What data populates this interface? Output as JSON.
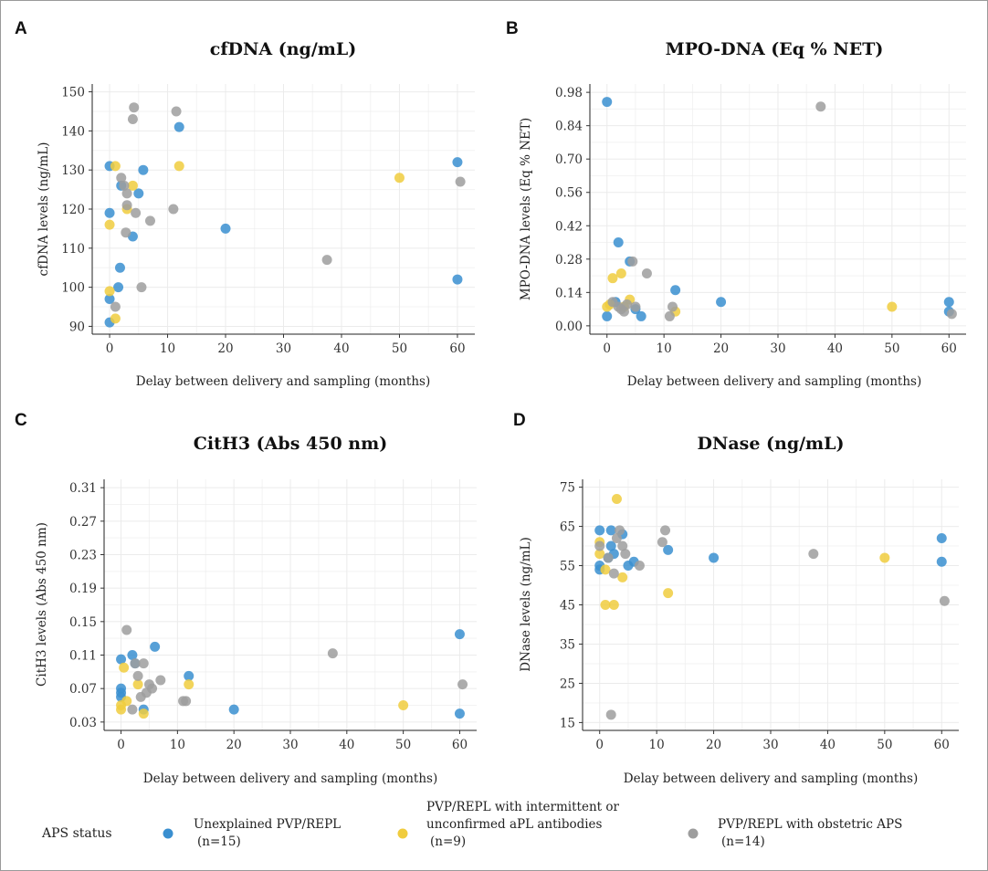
{
  "chart_data": [
    {
      "panel": "A",
      "type": "scatter",
      "title": "cfDNA (ng/mL)",
      "xlabel": "Delay between delivery and sampling (months)",
      "ylabel": "cfDNA levels (ng/mL)",
      "xlim": [
        -3,
        63
      ],
      "ylim": [
        88,
        152
      ],
      "xticks": [
        0,
        10,
        20,
        30,
        40,
        50,
        60
      ],
      "yticks": [
        90,
        100,
        110,
        120,
        130,
        140,
        150
      ],
      "ytick_labels": [
        "90",
        "100",
        "110",
        "120",
        "130",
        "140",
        "150"
      ],
      "series": [
        {
          "group": "unexplained",
          "points": [
            [
              0,
              131
            ],
            [
              0,
              119
            ],
            [
              0,
              97
            ],
            [
              0,
              91
            ],
            [
              1.5,
              100
            ],
            [
              1.8,
              105
            ],
            [
              2,
              126
            ],
            [
              4,
              113
            ],
            [
              5,
              124
            ],
            [
              5.8,
              130
            ],
            [
              12,
              141
            ],
            [
              20,
              115
            ],
            [
              60,
              132
            ],
            [
              60,
              102
            ]
          ]
        },
        {
          "group": "intermittent",
          "points": [
            [
              0,
              116
            ],
            [
              0,
              99
            ],
            [
              1,
              131
            ],
            [
              1,
              92
            ],
            [
              3,
              120
            ],
            [
              4,
              126
            ],
            [
              12,
              131
            ],
            [
              50,
              128
            ]
          ]
        },
        {
          "group": "obstetric",
          "points": [
            [
              1,
              95
            ],
            [
              2,
              128
            ],
            [
              2.5,
              126
            ],
            [
              3,
              124
            ],
            [
              2.8,
              114
            ],
            [
              3,
              121
            ],
            [
              4,
              143
            ],
            [
              4.2,
              146
            ],
            [
              4.5,
              119
            ],
            [
              5.5,
              100
            ],
            [
              7,
              117
            ],
            [
              11,
              120
            ],
            [
              11.5,
              145
            ],
            [
              37.5,
              107
            ],
            [
              60.5,
              127
            ]
          ]
        }
      ]
    },
    {
      "panel": "B",
      "type": "scatter",
      "title": "MPO-DNA (Eq % NET)",
      "xlabel": "Delay between delivery and sampling (months)",
      "ylabel": "MPO-DNA levels (Eq % NET)",
      "xlim": [
        -3,
        63
      ],
      "ylim": [
        -0.035,
        1.015
      ],
      "xticks": [
        0,
        10,
        20,
        30,
        40,
        50,
        60
      ],
      "yticks": [
        0.0,
        0.14,
        0.28,
        0.42,
        0.56,
        0.7,
        0.84,
        0.98
      ],
      "ytick_labels": [
        "0.00",
        "0.14",
        "0.28",
        "0.42",
        "0.56",
        "0.70",
        "0.84",
        "0.98"
      ],
      "series": [
        {
          "group": "unexplained",
          "points": [
            [
              0,
              0.94
            ],
            [
              0,
              0.04
            ],
            [
              1.5,
              0.1
            ],
            [
              2,
              0.35
            ],
            [
              4,
              0.27
            ],
            [
              5,
              0.07
            ],
            [
              6,
              0.04
            ],
            [
              12,
              0.15
            ],
            [
              20,
              0.1
            ],
            [
              60,
              0.1
            ],
            [
              60,
              0.06
            ]
          ]
        },
        {
          "group": "intermittent",
          "points": [
            [
              0,
              0.08
            ],
            [
              0.5,
              0.09
            ],
            [
              1,
              0.2
            ],
            [
              2.5,
              0.22
            ],
            [
              3,
              0.08
            ],
            [
              4,
              0.11
            ],
            [
              12,
              0.06
            ],
            [
              50,
              0.08
            ]
          ]
        },
        {
          "group": "obstetric",
          "points": [
            [
              1,
              0.1
            ],
            [
              2,
              0.08
            ],
            [
              2.5,
              0.07
            ],
            [
              3,
              0.06
            ],
            [
              3.5,
              0.09
            ],
            [
              4.5,
              0.27
            ],
            [
              5,
              0.08
            ],
            [
              7,
              0.22
            ],
            [
              11,
              0.04
            ],
            [
              11.5,
              0.08
            ],
            [
              37.5,
              0.92
            ],
            [
              60.5,
              0.05
            ]
          ]
        }
      ]
    },
    {
      "panel": "C",
      "type": "scatter",
      "title": "CitH3 (Abs 450 nm)",
      "xlabel": "Delay between delivery and sampling (months)",
      "ylabel": "CitH3 levels (Abs 450 nm)",
      "xlim": [
        -3,
        63
      ],
      "ylim": [
        0.02,
        0.32
      ],
      "xticks": [
        0,
        10,
        20,
        30,
        40,
        50,
        60
      ],
      "yticks": [
        0.03,
        0.07,
        0.11,
        0.15,
        0.19,
        0.23,
        0.27,
        0.31
      ],
      "ytick_labels": [
        "0.03",
        "0.07",
        "0.11",
        "0.15",
        "0.19",
        "0.23",
        "0.27",
        "0.31"
      ],
      "series": [
        {
          "group": "unexplained",
          "points": [
            [
              0,
              0.105
            ],
            [
              0,
              0.07
            ],
            [
              0,
              0.065
            ],
            [
              0,
              0.06
            ],
            [
              2,
              0.11
            ],
            [
              2.5,
              0.1
            ],
            [
              4,
              0.045
            ],
            [
              6,
              0.12
            ],
            [
              12,
              0.085
            ],
            [
              20,
              0.045
            ],
            [
              60,
              0.135
            ],
            [
              60,
              0.04
            ]
          ]
        },
        {
          "group": "intermittent",
          "points": [
            [
              0,
              0.05
            ],
            [
              0,
              0.045
            ],
            [
              0.5,
              0.095
            ],
            [
              1,
              0.055
            ],
            [
              3,
              0.075
            ],
            [
              4,
              0.04
            ],
            [
              12,
              0.075
            ],
            [
              50,
              0.05
            ]
          ]
        },
        {
          "group": "obstetric",
          "points": [
            [
              1,
              0.14
            ],
            [
              2,
              0.045
            ],
            [
              2.5,
              0.1
            ],
            [
              3,
              0.085
            ],
            [
              3.5,
              0.06
            ],
            [
              4,
              0.1
            ],
            [
              4.5,
              0.065
            ],
            [
              5,
              0.075
            ],
            [
              5.5,
              0.07
            ],
            [
              7,
              0.08
            ],
            [
              11,
              0.055
            ],
            [
              11.5,
              0.055
            ],
            [
              37.5,
              0.112
            ],
            [
              60.5,
              0.075
            ]
          ]
        }
      ]
    },
    {
      "panel": "D",
      "type": "scatter",
      "title": "DNase (ng/mL)",
      "xlabel": "Delay between delivery and sampling (months)",
      "ylabel": "DNase levels (ng/mL)",
      "xlim": [
        -3,
        63
      ],
      "ylim": [
        13,
        77
      ],
      "xticks": [
        0,
        10,
        20,
        30,
        40,
        50,
        60
      ],
      "yticks": [
        15,
        25,
        35,
        45,
        55,
        65,
        75
      ],
      "ytick_labels": [
        "15",
        "25",
        "35",
        "45",
        "55",
        "65",
        "75"
      ],
      "series": [
        {
          "group": "unexplained",
          "points": [
            [
              0,
              64
            ],
            [
              0,
              55
            ],
            [
              0,
              54
            ],
            [
              1.5,
              57
            ],
            [
              2,
              64
            ],
            [
              2,
              60
            ],
            [
              2.5,
              58
            ],
            [
              4,
              63
            ],
            [
              5,
              55
            ],
            [
              6,
              56
            ],
            [
              12,
              59
            ],
            [
              20,
              57
            ],
            [
              60,
              62
            ],
            [
              60,
              56
            ]
          ]
        },
        {
          "group": "intermittent",
          "points": [
            [
              0,
              61
            ],
            [
              0,
              58
            ],
            [
              1,
              45
            ],
            [
              1,
              54
            ],
            [
              2.5,
              45
            ],
            [
              3,
              72
            ],
            [
              4,
              52
            ],
            [
              12,
              48
            ],
            [
              50,
              57
            ]
          ]
        },
        {
          "group": "obstetric",
          "points": [
            [
              0,
              60
            ],
            [
              1.5,
              57
            ],
            [
              2,
              17
            ],
            [
              2.5,
              53
            ],
            [
              3,
              62
            ],
            [
              3.5,
              64
            ],
            [
              4,
              60
            ],
            [
              4.5,
              58
            ],
            [
              7,
              55
            ],
            [
              11,
              61
            ],
            [
              11.5,
              64
            ],
            [
              37.5,
              58
            ],
            [
              60.5,
              46
            ]
          ]
        }
      ]
    }
  ],
  "panels": [
    {
      "letter": "A",
      "title": "cfDNA (ng/mL)"
    },
    {
      "letter": "B",
      "title": "MPO-DNA (Eq % NET)"
    },
    {
      "letter": "C",
      "title": "CitH3 (Abs 450 nm)"
    },
    {
      "letter": "D",
      "title": "DNase (ng/mL)"
    }
  ],
  "legend": {
    "title": "APS status",
    "placement": "bottom",
    "entries": [
      {
        "group": "unexplained",
        "color": "#3a8fd0",
        "lines": [
          "Unexplained PVP/REPL",
          "(n=15)"
        ]
      },
      {
        "group": "intermittent",
        "color": "#f0cc3e",
        "lines": [
          "PVP/REPL with intermittent or",
          "unconfirmed aPL antibodies",
          "(n=9)"
        ]
      },
      {
        "group": "obstetric",
        "color": "#9d9d9d",
        "lines": [
          "PVP/REPL with obstetric APS",
          "(n=14)"
        ]
      }
    ]
  },
  "colors": {
    "unexplained": "#3a8fd0",
    "intermittent": "#f0cc3e",
    "obstetric": "#9d9d9d",
    "frame": "#9a9a9a"
  }
}
